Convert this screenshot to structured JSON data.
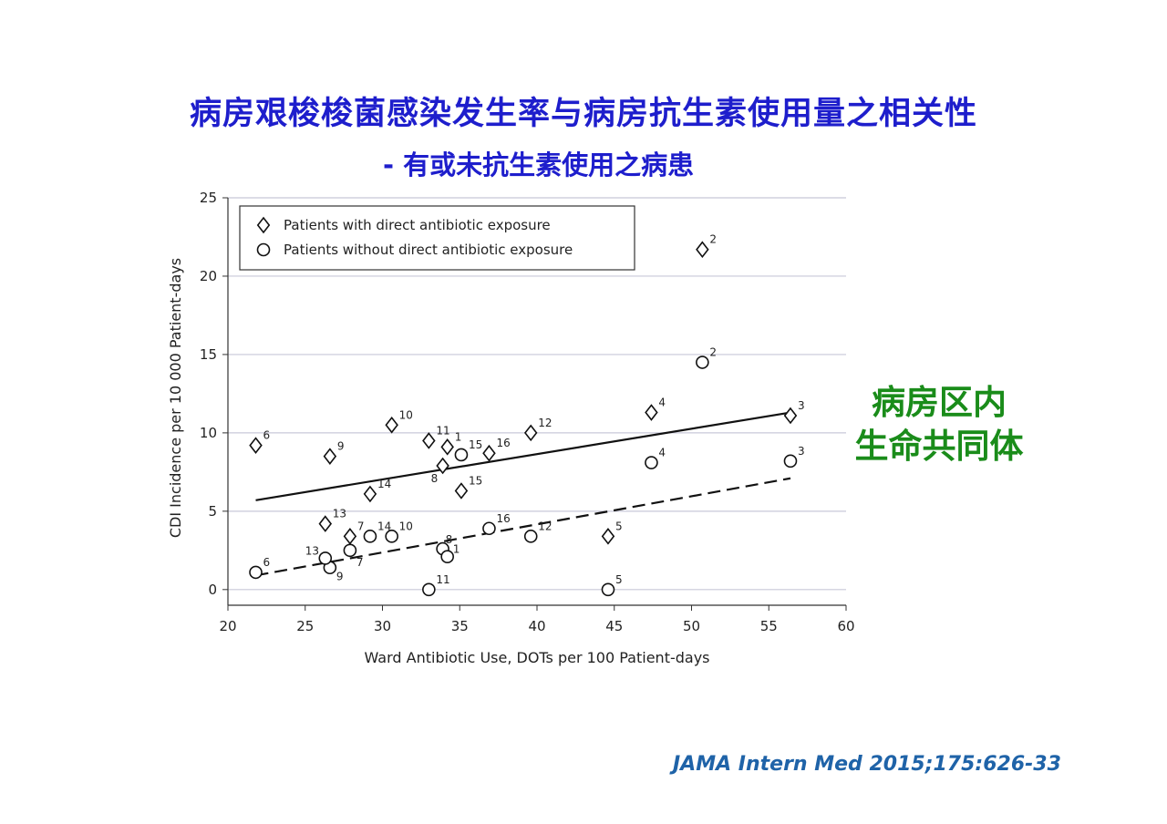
{
  "slide": {
    "title": "病房艰梭梭菌感染发生率与病房抗生素使用量之相关性",
    "subtitle": "- 有或未抗生素使用之病患",
    "side_note": [
      "病房区内",
      "生命共同体"
    ],
    "citation": "JAMA Intern Med 2015;175:626-33"
  },
  "chart_data": {
    "type": "scatter",
    "title": "",
    "xlabel": "Ward Antibiotic Use, DOTs per 100 Patient-days",
    "ylabel": "CDI Incidence per 10 000 Patient-days",
    "xlim": [
      20,
      60
    ],
    "ylim": [
      -1,
      25
    ],
    "xticks": [
      "20",
      "25",
      "30",
      "35",
      "40",
      "45",
      "50",
      "55",
      "60"
    ],
    "yticks": [
      "0",
      "5",
      "10",
      "15",
      "20",
      "25"
    ],
    "grid": "horizontal",
    "legend_position": "top-left",
    "series": [
      {
        "name": "Patients with direct antibiotic exposure",
        "marker": "diamond",
        "points": [
          {
            "label": "6",
            "x": 21.8,
            "y": 9.2
          },
          {
            "label": "9",
            "x": 26.6,
            "y": 8.5
          },
          {
            "label": "10",
            "x": 30.6,
            "y": 10.5
          },
          {
            "label": "11",
            "x": 33.0,
            "y": 9.5
          },
          {
            "label": "1",
            "x": 34.2,
            "y": 9.1
          },
          {
            "label": "8",
            "x": 33.9,
            "y": 7.9
          },
          {
            "label": "16",
            "x": 36.9,
            "y": 8.7
          },
          {
            "label": "12",
            "x": 39.6,
            "y": 10.0
          },
          {
            "label": "15",
            "x": 35.1,
            "y": 6.3
          },
          {
            "label": "14",
            "x": 29.2,
            "y": 6.1
          },
          {
            "label": "13",
            "x": 26.3,
            "y": 4.2
          },
          {
            "label": "7",
            "x": 27.9,
            "y": 3.4
          },
          {
            "label": "5",
            "x": 44.6,
            "y": 3.4
          },
          {
            "label": "4",
            "x": 47.4,
            "y": 11.3
          },
          {
            "label": "2",
            "x": 50.7,
            "y": 21.7
          },
          {
            "label": "3",
            "x": 56.4,
            "y": 11.1
          }
        ],
        "trend": {
          "style": "solid",
          "x": [
            21.8,
            56.4
          ],
          "y": [
            5.7,
            11.3
          ]
        }
      },
      {
        "name": "Patients without direct antibiotic exposure",
        "marker": "circle",
        "points": [
          {
            "label": "6",
            "x": 21.8,
            "y": 1.1
          },
          {
            "label": "9",
            "x": 26.6,
            "y": 1.4
          },
          {
            "label": "13",
            "x": 26.3,
            "y": 2.0
          },
          {
            "label": "7",
            "x": 27.9,
            "y": 2.5
          },
          {
            "label": "14",
            "x": 29.2,
            "y": 3.4
          },
          {
            "label": "10",
            "x": 30.6,
            "y": 3.4
          },
          {
            "label": "8",
            "x": 33.9,
            "y": 2.6
          },
          {
            "label": "1",
            "x": 34.2,
            "y": 2.1
          },
          {
            "label": "11",
            "x": 33.0,
            "y": 0.0
          },
          {
            "label": "15",
            "x": 35.1,
            "y": 8.6
          },
          {
            "label": "16",
            "x": 36.9,
            "y": 3.9
          },
          {
            "label": "12",
            "x": 39.6,
            "y": 3.4
          },
          {
            "label": "5",
            "x": 44.6,
            "y": 0.0
          },
          {
            "label": "4",
            "x": 47.4,
            "y": 8.1
          },
          {
            "label": "2",
            "x": 50.7,
            "y": 14.5
          },
          {
            "label": "3",
            "x": 56.4,
            "y": 8.2
          }
        ],
        "trend": {
          "style": "dashed",
          "x": [
            21.8,
            56.4
          ],
          "y": [
            0.9,
            7.1
          ]
        }
      }
    ]
  }
}
